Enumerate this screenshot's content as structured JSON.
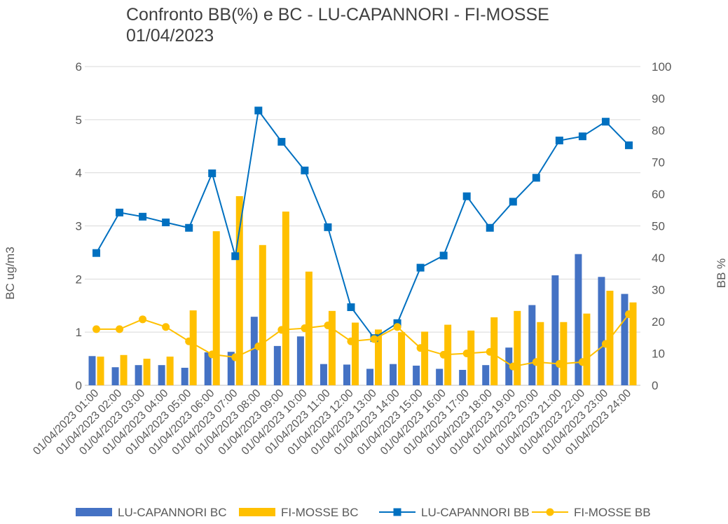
{
  "chart_data": {
    "type": "bar+line",
    "title_line1": "Confronto BB(%) e  BC - LU-CAPANNORI - FI-MOSSE",
    "title_line2": "01/04/2023",
    "ylabel_left": "BC  ug/m3",
    "ylabel_right": "BB  %",
    "ylim_left": [
      0,
      6
    ],
    "ylim_right": [
      0,
      100
    ],
    "yticks_left": [
      "0",
      "1",
      "2",
      "3",
      "4",
      "5",
      "6"
    ],
    "yticks_right": [
      "0",
      "10",
      "20",
      "30",
      "40",
      "50",
      "60",
      "70",
      "80",
      "90",
      "100"
    ],
    "grid": true,
    "legend_position": "bottom",
    "categories": [
      "01/04/2023 01:00",
      "01/04/2023 02:00",
      "01/04/2023 03:00",
      "01/04/2023 04:00",
      "01/04/2023 05:00",
      "01/04/2023 06:00",
      "01/04/2023 07:00",
      "01/04/2023 08:00",
      "01/04/2023 09:00",
      "01/04/2023 10:00",
      "01/04/2023 11:00",
      "01/04/2023 12:00",
      "01/04/2023 13:00",
      "01/04/2023 14:00",
      "01/04/2023 15:00",
      "01/04/2023 16:00",
      "01/04/2023 17:00",
      "01/04/2023 18:00",
      "01/04/2023 19:00",
      "01/04/2023 20:00",
      "01/04/2023 21:00",
      "01/04/2023 22:00",
      "01/04/2023 23:00",
      "01/04/2023 24:00"
    ],
    "series": [
      {
        "name": "LU-CAPANNORI BC",
        "kind": "bar",
        "axis": "left",
        "color": "#4472C4",
        "values": [
          0.55,
          0.34,
          0.38,
          0.38,
          0.33,
          0.62,
          0.63,
          1.29,
          0.74,
          0.92,
          0.4,
          0.39,
          0.31,
          0.4,
          0.37,
          0.31,
          0.29,
          0.38,
          0.71,
          1.51,
          2.07,
          2.47,
          2.04,
          1.72
        ]
      },
      {
        "name": "FI-MOSSE BC",
        "kind": "bar",
        "axis": "left",
        "color": "#FFC000",
        "values": [
          0.54,
          0.57,
          0.5,
          0.54,
          1.41,
          2.9,
          3.56,
          2.64,
          3.27,
          2.14,
          1.4,
          1.18,
          1.05,
          1.0,
          1.01,
          1.14,
          1.03,
          1.28,
          1.4,
          1.19,
          1.19,
          1.35,
          1.78,
          1.56
        ]
      },
      {
        "name": "LU-CAPANNORI BB",
        "kind": "line",
        "marker": "square",
        "axis": "right",
        "color": "#0070C0",
        "values": [
          41.5,
          54.2,
          52.9,
          51.1,
          49.4,
          66.5,
          40.5,
          86.2,
          76.4,
          67.4,
          49.6,
          24.5,
          14.8,
          19.5,
          36.9,
          40.7,
          59.3,
          49.4,
          57.6,
          65.1,
          76.8,
          78.1,
          82.7,
          75.3
        ]
      },
      {
        "name": "FI-MOSSE BB",
        "kind": "line",
        "marker": "circle",
        "axis": "right",
        "color": "#FFC000",
        "values": [
          17.6,
          17.6,
          20.7,
          18.3,
          13.8,
          9.7,
          8.8,
          12.2,
          17.4,
          17.9,
          18.8,
          13.8,
          14.5,
          18.3,
          11.7,
          9.6,
          10.0,
          10.5,
          5.9,
          7.3,
          6.7,
          7.3,
          13.0,
          22.3
        ]
      }
    ]
  }
}
